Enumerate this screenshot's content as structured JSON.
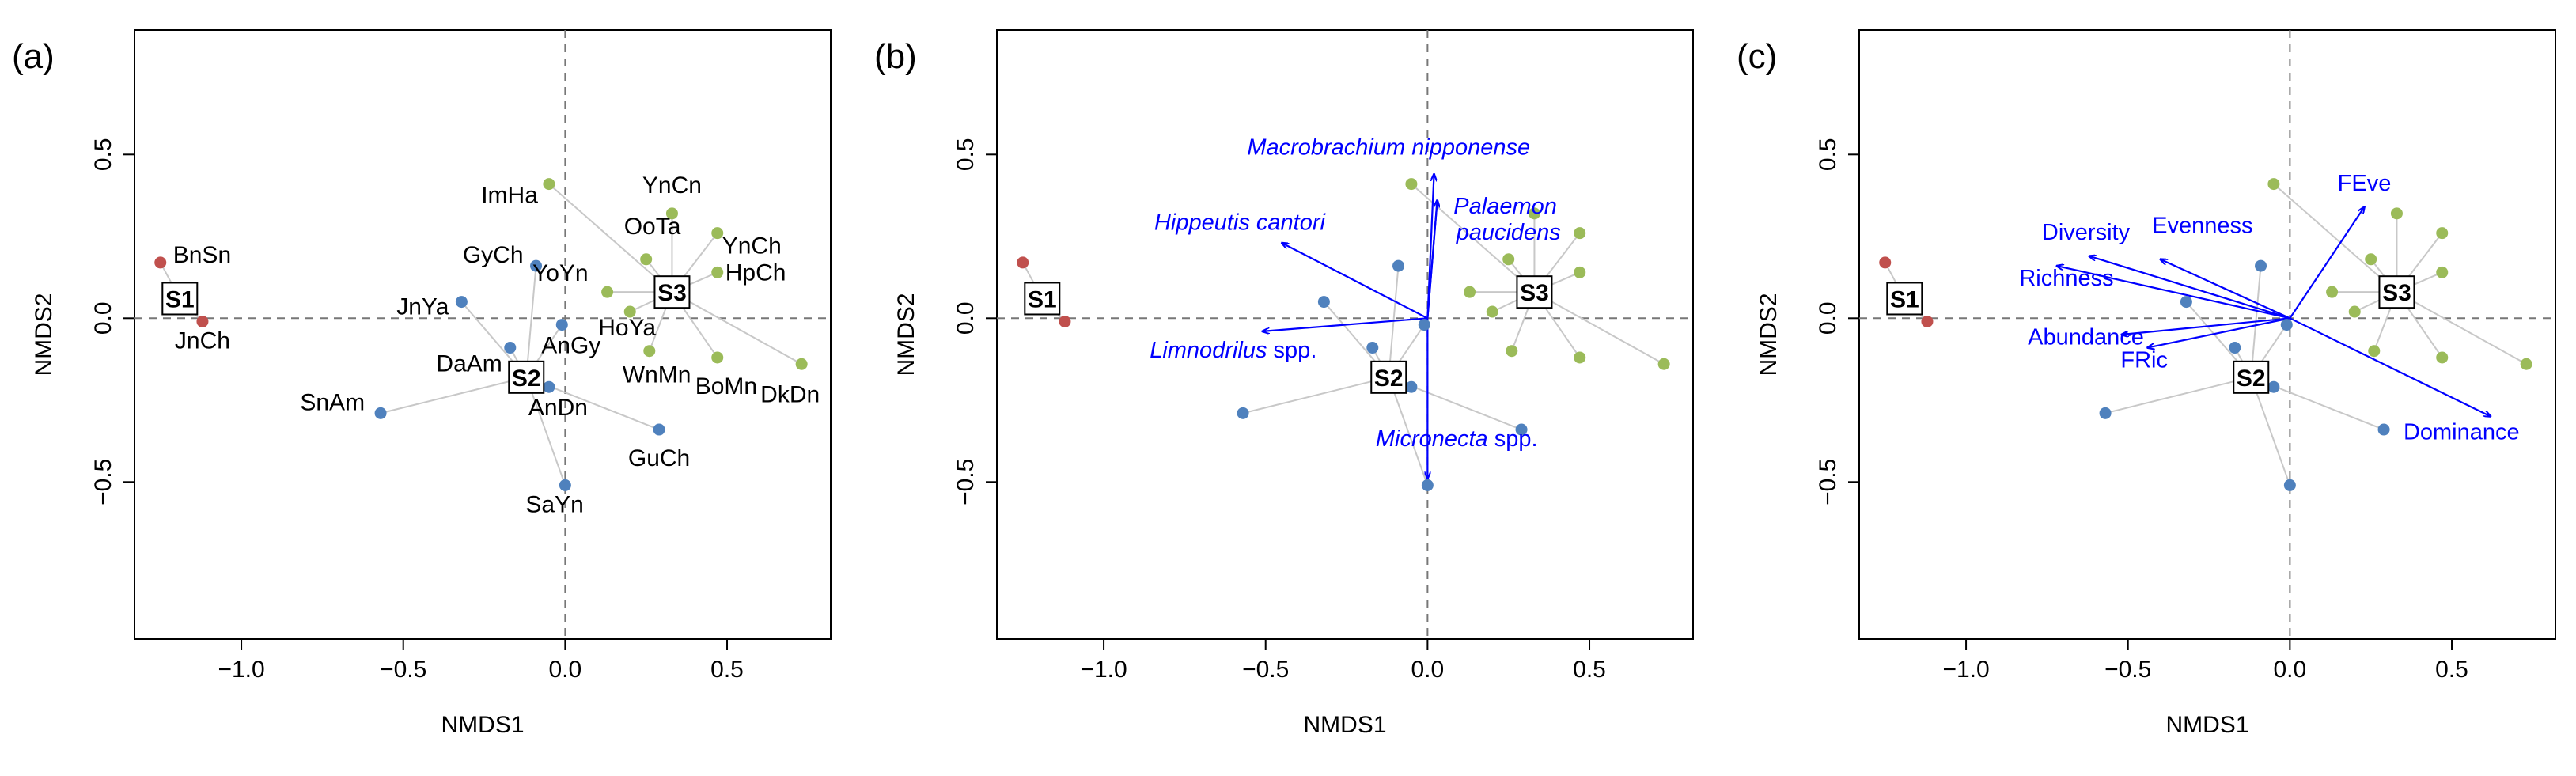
{
  "chart_data": [
    {
      "type": "scatter",
      "panel_label": "(a)",
      "xlabel": "NMDS1",
      "ylabel": "NMDS2",
      "xlim": [
        -1.33,
        0.82
      ],
      "ylim": [
        -0.98,
        0.88
      ],
      "xticks": [
        -1.0,
        -0.5,
        0.0,
        0.5
      ],
      "xtick_labels": [
        "−1.0",
        "−0.5",
        "0.0",
        "0.5"
      ],
      "yticks": [
        -0.5,
        0.0,
        0.5
      ],
      "ytick_labels": [
        "−0.5",
        "0.0",
        "0.5"
      ],
      "group_colors": {
        "S1": "#c0504d",
        "S2": "#4f81bd",
        "S3": "#9bbb59"
      },
      "centroids": [
        {
          "name": "S1",
          "x": -1.19,
          "y": 0.06
        },
        {
          "name": "S2",
          "x": -0.12,
          "y": -0.18
        },
        {
          "name": "S3",
          "x": 0.33,
          "y": 0.08
        }
      ],
      "points": [
        {
          "label": "BnSn",
          "group": "S1",
          "x": -1.25,
          "y": 0.17
        },
        {
          "label": "JnCh",
          "group": "S1",
          "x": -1.12,
          "y": -0.01
        },
        {
          "label": "GyCh",
          "group": "S2",
          "x": -0.09,
          "y": 0.16
        },
        {
          "label": "JnYa",
          "group": "S2",
          "x": -0.32,
          "y": 0.05
        },
        {
          "label": "DaAm",
          "group": "S2",
          "x": -0.17,
          "y": -0.09
        },
        {
          "label": "AnGy",
          "group": "S2",
          "x": -0.01,
          "y": -0.02
        },
        {
          "label": "AnDn",
          "group": "S2",
          "x": -0.05,
          "y": -0.21
        },
        {
          "label": "SnAm",
          "group": "S2",
          "x": -0.57,
          "y": -0.29
        },
        {
          "label": "GuCh",
          "group": "S2",
          "x": 0.29,
          "y": -0.34
        },
        {
          "label": "SaYn",
          "group": "S2",
          "x": 0.0,
          "y": -0.51
        },
        {
          "label": "ImHa",
          "group": "S3",
          "x": -0.05,
          "y": 0.41
        },
        {
          "label": "YnCn",
          "group": "S3",
          "x": 0.33,
          "y": 0.32
        },
        {
          "label": "OoTa",
          "group": "S3",
          "x": 0.25,
          "y": 0.18
        },
        {
          "label": "YnCh",
          "group": "S3",
          "x": 0.47,
          "y": 0.26
        },
        {
          "label": "YoYn",
          "group": "S3",
          "x": 0.13,
          "y": 0.08
        },
        {
          "label": "HpCh",
          "group": "S3",
          "x": 0.47,
          "y": 0.14
        },
        {
          "label": "HoYa",
          "group": "S3",
          "x": 0.2,
          "y": 0.02
        },
        {
          "label": "WnMn",
          "group": "S3",
          "x": 0.26,
          "y": -0.1
        },
        {
          "label": "BoMn",
          "group": "S3",
          "x": 0.47,
          "y": -0.12
        },
        {
          "label": "DkDn",
          "group": "S3",
          "x": 0.73,
          "y": -0.14
        }
      ],
      "vectors": []
    },
    {
      "type": "scatter",
      "panel_label": "(b)",
      "xlabel": "NMDS1",
      "ylabel": "NMDS2",
      "xlim": [
        -1.33,
        0.82
      ],
      "ylim": [
        -0.98,
        0.88
      ],
      "xticks": [
        -1.0,
        -0.5,
        0.0,
        0.5
      ],
      "xtick_labels": [
        "−1.0",
        "−0.5",
        "0.0",
        "0.5"
      ],
      "yticks": [
        -0.5,
        0.0,
        0.5
      ],
      "ytick_labels": [
        "−0.5",
        "0.0",
        "0.5"
      ],
      "group_colors": {
        "S1": "#c0504d",
        "S2": "#4f81bd",
        "S3": "#9bbb59"
      },
      "centroids": [
        {
          "name": "S1",
          "x": -1.19,
          "y": 0.06
        },
        {
          "name": "S2",
          "x": -0.12,
          "y": -0.18
        },
        {
          "name": "S3",
          "x": 0.33,
          "y": 0.08
        }
      ],
      "points": [
        {
          "group": "S1",
          "x": -1.25,
          "y": 0.17
        },
        {
          "group": "S1",
          "x": -1.12,
          "y": -0.01
        },
        {
          "group": "S2",
          "x": -0.09,
          "y": 0.16
        },
        {
          "group": "S2",
          "x": -0.32,
          "y": 0.05
        },
        {
          "group": "S2",
          "x": -0.17,
          "y": -0.09
        },
        {
          "group": "S2",
          "x": -0.01,
          "y": -0.02
        },
        {
          "group": "S2",
          "x": -0.05,
          "y": -0.21
        },
        {
          "group": "S2",
          "x": -0.57,
          "y": -0.29
        },
        {
          "group": "S2",
          "x": 0.29,
          "y": -0.34
        },
        {
          "group": "S2",
          "x": 0.0,
          "y": -0.51
        },
        {
          "group": "S3",
          "x": -0.05,
          "y": 0.41
        },
        {
          "group": "S3",
          "x": 0.33,
          "y": 0.32
        },
        {
          "group": "S3",
          "x": 0.25,
          "y": 0.18
        },
        {
          "group": "S3",
          "x": 0.47,
          "y": 0.26
        },
        {
          "group": "S3",
          "x": 0.13,
          "y": 0.08
        },
        {
          "group": "S3",
          "x": 0.47,
          "y": 0.14
        },
        {
          "group": "S3",
          "x": 0.2,
          "y": 0.02
        },
        {
          "group": "S3",
          "x": 0.26,
          "y": -0.1
        },
        {
          "group": "S3",
          "x": 0.47,
          "y": -0.12
        },
        {
          "group": "S3",
          "x": 0.73,
          "y": -0.14
        }
      ],
      "vectors": [
        {
          "label": "Macrobrachium nipponense",
          "italic": true,
          "x": 0.02,
          "y": 0.44,
          "label_x": -0.12,
          "label_y": 0.5
        },
        {
          "label": "Palaemon",
          "italic": true,
          "x": 0.03,
          "y": 0.36,
          "label_x": 0.24,
          "label_y": 0.32
        },
        {
          "label": "paucidens",
          "italic": true,
          "x": 0.03,
          "y": 0.36,
          "label_x": 0.25,
          "label_y": 0.24
        },
        {
          "label": "Hippeutis cantori",
          "italic": true,
          "x": -0.45,
          "y": 0.23,
          "label_x": -0.58,
          "label_y": 0.27
        },
        {
          "label": "Limnodrilus spp.",
          "italic_part": "Limnodrilus",
          "x": -0.51,
          "y": -0.04,
          "label_x": -0.6,
          "label_y": -0.12
        },
        {
          "label": "Micronecta spp.",
          "italic_part": "Micronecta",
          "x": 0.0,
          "y": -0.49,
          "label_x": 0.09,
          "label_y": -0.39
        }
      ]
    },
    {
      "type": "scatter",
      "panel_label": "(c)",
      "xlabel": "NMDS1",
      "ylabel": "NMDS2",
      "xlim": [
        -1.33,
        0.82
      ],
      "ylim": [
        -0.98,
        0.88
      ],
      "xticks": [
        -1.0,
        -0.5,
        0.0,
        0.5
      ],
      "xtick_labels": [
        "−1.0",
        "−0.5",
        "0.0",
        "0.5"
      ],
      "yticks": [
        -0.5,
        0.0,
        0.5
      ],
      "ytick_labels": [
        "−0.5",
        "0.0",
        "0.5"
      ],
      "group_colors": {
        "S1": "#c0504d",
        "S2": "#4f81bd",
        "S3": "#9bbb59"
      },
      "centroids": [
        {
          "name": "S1",
          "x": -1.19,
          "y": 0.06
        },
        {
          "name": "S2",
          "x": -0.12,
          "y": -0.18
        },
        {
          "name": "S3",
          "x": 0.33,
          "y": 0.08
        }
      ],
      "points": [
        {
          "group": "S1",
          "x": -1.25,
          "y": 0.17
        },
        {
          "group": "S1",
          "x": -1.12,
          "y": -0.01
        },
        {
          "group": "S2",
          "x": -0.09,
          "y": 0.16
        },
        {
          "group": "S2",
          "x": -0.32,
          "y": 0.05
        },
        {
          "group": "S2",
          "x": -0.17,
          "y": -0.09
        },
        {
          "group": "S2",
          "x": -0.01,
          "y": -0.02
        },
        {
          "group": "S2",
          "x": -0.05,
          "y": -0.21
        },
        {
          "group": "S2",
          "x": -0.57,
          "y": -0.29
        },
        {
          "group": "S2",
          "x": 0.29,
          "y": -0.34
        },
        {
          "group": "S2",
          "x": 0.0,
          "y": -0.51
        },
        {
          "group": "S3",
          "x": -0.05,
          "y": 0.41
        },
        {
          "group": "S3",
          "x": 0.33,
          "y": 0.32
        },
        {
          "group": "S3",
          "x": 0.25,
          "y": 0.18
        },
        {
          "group": "S3",
          "x": 0.47,
          "y": 0.26
        },
        {
          "group": "S3",
          "x": 0.13,
          "y": 0.08
        },
        {
          "group": "S3",
          "x": 0.47,
          "y": 0.14
        },
        {
          "group": "S3",
          "x": 0.2,
          "y": 0.02
        },
        {
          "group": "S3",
          "x": 0.26,
          "y": -0.1
        },
        {
          "group": "S3",
          "x": 0.47,
          "y": -0.12
        },
        {
          "group": "S3",
          "x": 0.73,
          "y": -0.14
        }
      ],
      "vectors": [
        {
          "label": "FEve",
          "x": 0.23,
          "y": 0.34,
          "label_x": 0.23,
          "label_y": 0.39
        },
        {
          "label": "Evenness",
          "x": -0.4,
          "y": 0.18,
          "label_x": -0.27,
          "label_y": 0.26
        },
        {
          "label": "Diversity",
          "x": -0.62,
          "y": 0.19,
          "label_x": -0.63,
          "label_y": 0.24
        },
        {
          "label": "Richness",
          "x": -0.72,
          "y": 0.16,
          "label_x": -0.69,
          "label_y": 0.1
        },
        {
          "label": "Abundance",
          "x": -0.52,
          "y": -0.05,
          "label_x": -0.63,
          "label_y": -0.08
        },
        {
          "label": "FRic",
          "x": -0.44,
          "y": -0.09,
          "label_x": -0.45,
          "label_y": -0.15
        },
        {
          "label": "Dominance",
          "x": 0.62,
          "y": -0.3,
          "label_x": 0.53,
          "label_y": -0.37
        }
      ]
    }
  ]
}
